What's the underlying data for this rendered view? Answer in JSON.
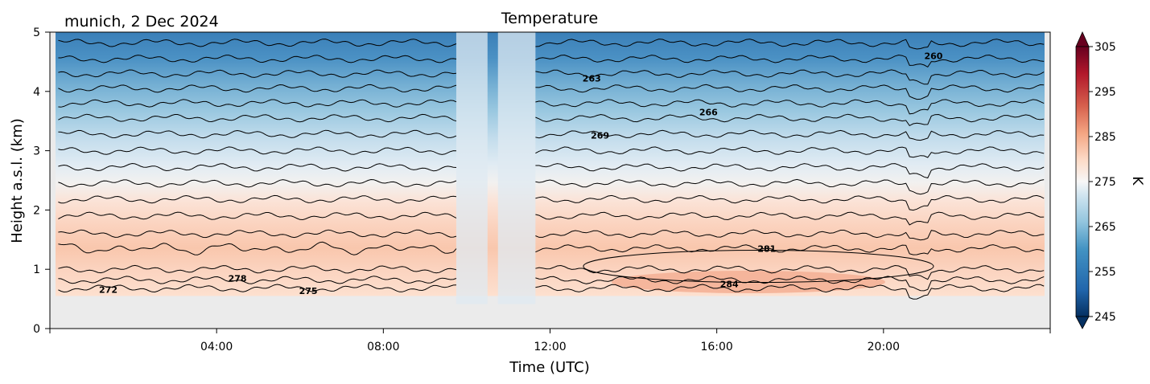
{
  "chart_data": {
    "type": "heatmap",
    "title": "Temperature",
    "subtitle": "munich, 2 Dec 2024",
    "xlabel": "Time (UTC)",
    "ylabel": "Height a.s.l. (km)",
    "x_unit": "hours",
    "xlim": [
      0,
      24
    ],
    "ylim": [
      0,
      5
    ],
    "x_ticks": [
      {
        "value": 4,
        "label": "04:00"
      },
      {
        "value": 8,
        "label": "08:00"
      },
      {
        "value": 12,
        "label": "12:00"
      },
      {
        "value": 16,
        "label": "16:00"
      },
      {
        "value": 20,
        "label": "20:00"
      }
    ],
    "y_ticks": [
      {
        "value": 0,
        "label": "0"
      },
      {
        "value": 1,
        "label": "1"
      },
      {
        "value": 2,
        "label": "2"
      },
      {
        "value": 3,
        "label": "3"
      },
      {
        "value": 4,
        "label": "4"
      },
      {
        "value": 5,
        "label": "5"
      }
    ],
    "colorbar": {
      "label": "K",
      "range": [
        245,
        305
      ],
      "ticks": [
        245,
        255,
        265,
        275,
        285,
        295,
        305
      ],
      "colors": [
        "#053061",
        "#134b87",
        "#2166ac",
        "#3a7bb7",
        "#4393c3",
        "#71aed2",
        "#92c5de",
        "#b6d7e8",
        "#d1e5f0",
        "#e4eef4",
        "#f7f7f7",
        "#fae8de",
        "#fddbc7",
        "#f8bfa4",
        "#f4a582",
        "#e7805f",
        "#d6604d",
        "#c0343d",
        "#b2182b",
        "#8b0a26",
        "#67001f"
      ],
      "extend": "both"
    },
    "data_bottom_km": 0.55,
    "gaps_hours": [
      [
        9.75,
        10.5
      ],
      [
        10.75,
        11.65
      ]
    ],
    "contour_levels": [
      {
        "level": 260,
        "height_km": 4.8,
        "label_at_hour": 21.2,
        "label_height_km": 4.6
      },
      {
        "level": 263,
        "height_km": 4.2,
        "label_at_hour": 13.0,
        "label_height_km": 4.22
      },
      {
        "level": 266,
        "height_km": 3.68,
        "label_at_hour": 15.8,
        "label_height_km": 3.65
      },
      {
        "level": 269,
        "height_km": 3.3,
        "label_at_hour": 13.2,
        "label_height_km": 3.26
      },
      {
        "level": 278,
        "height_km": 0.82,
        "label_at_hour": 4.5,
        "label_height_km": 0.85
      },
      {
        "level": 281,
        "height_km": 1.35,
        "label_at_hour": 17.2,
        "label_height_km": 1.35
      },
      {
        "level": 272,
        "height_km": 0.66,
        "label_at_hour": 1.4,
        "label_height_km": 0.66
      },
      {
        "level": 275,
        "height_km": 0.64,
        "label_at_hour": 6.2,
        "label_height_km": 0.64
      },
      {
        "level": 284,
        "height_km": 0.75,
        "label_at_hour": 16.3,
        "label_height_km": 0.75
      }
    ],
    "grid": false,
    "legend": "colorbar-right"
  }
}
